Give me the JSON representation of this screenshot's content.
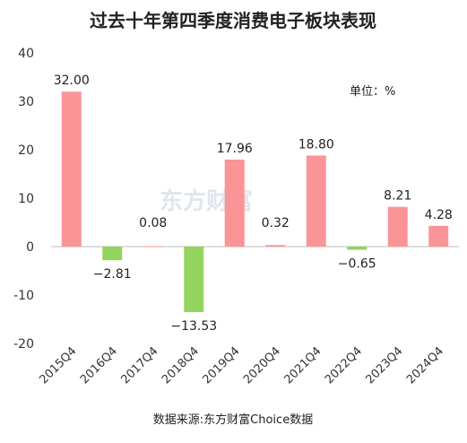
{
  "chart_data": {
    "type": "bar",
    "title": "过去十年第四季度消费电子板块表现",
    "unit_note": "单位：%",
    "source": "数据来源:东方财富Choice数据",
    "watermark": "东方财富",
    "categories": [
      "2015Q4",
      "2016Q4",
      "2017Q4",
      "2018Q4",
      "2019Q4",
      "2020Q4",
      "2021Q4",
      "2022Q4",
      "2023Q4",
      "2024Q4"
    ],
    "values": [
      32.0,
      -2.81,
      0.08,
      -13.53,
      17.96,
      0.32,
      18.8,
      -0.65,
      8.21,
      4.28
    ],
    "data_labels": [
      "32.00",
      "−2.81",
      "0.08",
      "−13.53",
      "17.96",
      "0.32",
      "18.80",
      "−0.65",
      "8.21",
      "4.28"
    ],
    "yticks": [
      "40",
      "30",
      "20",
      "10",
      "0",
      "-10",
      "-20"
    ],
    "ylim": [
      -20,
      40
    ],
    "colors": {
      "positive": "#fb9497",
      "negative": "#93d45e"
    },
    "grid": false,
    "xlabel": "",
    "ylabel": ""
  }
}
